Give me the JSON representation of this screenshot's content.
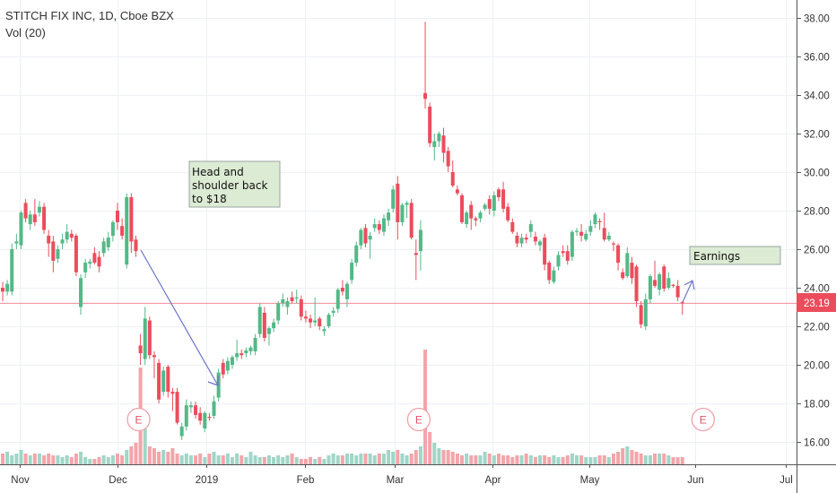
{
  "header": {
    "title": "STITCH FIX INC, 1D, Cboe BZX",
    "indicator": "Vol (20)"
  },
  "colors": {
    "up": "#53b987",
    "down": "#eb4d5c",
    "vol_up": "#9fd6c7",
    "vol_down": "#f3a5aa",
    "price_line": "#f28b98",
    "note_bg": "#dcebd3",
    "arrow": "#6b73c9"
  },
  "annotations": {
    "pattern_note": [
      "Head and",
      "shoulder back",
      "to $18"
    ],
    "earnings_note": "Earnings",
    "earnings_marker": "E"
  },
  "last_price": "23.19",
  "chart_data": {
    "type": "candlestick",
    "title": "STITCH FIX INC, 1D, Cboe BZX",
    "ylim": [
      15,
      38.9
    ],
    "y_ticks": [
      "16.00",
      "18.00",
      "20.00",
      "22.00",
      "24.00",
      "26.00",
      "28.00",
      "30.00",
      "32.00",
      "34.00",
      "36.00",
      "38.00"
    ],
    "x_ticks": [
      {
        "label": "Nov",
        "index": 3.7
      },
      {
        "label": "Dec",
        "index": 25
      },
      {
        "label": "2019",
        "index": 44.3
      },
      {
        "label": "Feb",
        "index": 65.8
      },
      {
        "label": "Mar",
        "index": 85.3
      },
      {
        "label": "Apr",
        "index": 106.6
      },
      {
        "label": "May",
        "index": 127.7
      },
      {
        "label": "Jun",
        "index": 150.8
      },
      {
        "label": "Jul",
        "index": 170.5
      }
    ],
    "earnings_index": [
      29.6,
      90.6,
      152.5
    ],
    "ohlc": [
      [
        24.0,
        24.3,
        23.3,
        23.8
      ],
      [
        23.8,
        24.4,
        23.6,
        24.2
      ],
      [
        23.8,
        26.3,
        23.6,
        26.0
      ],
      [
        26.3,
        26.8,
        26.0,
        26.4
      ],
      [
        26.2,
        28.0,
        26.0,
        27.9
      ],
      [
        28.4,
        28.6,
        27.4,
        27.6
      ],
      [
        27.3,
        28.0,
        27.0,
        27.8
      ],
      [
        27.8,
        28.6,
        27.2,
        27.4
      ],
      [
        27.9,
        28.5,
        27.7,
        28.2
      ],
      [
        28.2,
        28.4,
        26.8,
        27.0
      ],
      [
        26.7,
        27.0,
        25.6,
        26.3
      ],
      [
        26.4,
        26.7,
        24.8,
        25.4
      ],
      [
        25.5,
        26.2,
        25.3,
        26.0
      ],
      [
        26.3,
        26.8,
        26.0,
        26.5
      ],
      [
        26.5,
        27.3,
        26.3,
        26.9
      ],
      [
        26.8,
        27.0,
        26.4,
        26.6
      ],
      [
        26.7,
        26.8,
        24.6,
        24.8
      ],
      [
        23.0,
        24.7,
        22.6,
        24.5
      ],
      [
        24.8,
        25.5,
        24.5,
        25.3
      ],
      [
        25.25,
        25.5,
        25.0,
        25.35
      ],
      [
        25.8,
        26.1,
        25.2,
        25.3
      ],
      [
        25.6,
        25.9,
        24.8,
        25.1
      ],
      [
        25.8,
        26.6,
        25.6,
        26.4
      ],
      [
        26.1,
        26.9,
        25.9,
        26.6
      ],
      [
        26.7,
        27.5,
        26.4,
        27.4
      ],
      [
        28.0,
        28.4,
        27.0,
        27.4
      ],
      [
        27.2,
        27.6,
        26.5,
        26.7
      ],
      [
        25.2,
        28.9,
        25.0,
        28.7
      ],
      [
        28.7,
        28.9,
        25.8,
        26.4
      ],
      [
        26.5,
        26.7,
        25.6,
        25.9
      ],
      [
        21.0,
        21.6,
        20.0,
        20.6
      ],
      [
        20.3,
        23.0,
        20.0,
        22.4
      ],
      [
        22.3,
        22.5,
        20.3,
        20.5
      ],
      [
        20.5,
        20.7,
        19.3,
        20.4
      ],
      [
        20.1,
        20.3,
        18.0,
        18.2
      ],
      [
        18.6,
        19.9,
        18.4,
        19.7
      ],
      [
        19.9,
        20.0,
        18.3,
        18.6
      ],
      [
        18.6,
        18.8,
        17.6,
        18.5
      ],
      [
        18.6,
        18.8,
        16.9,
        17.0
      ],
      [
        16.3,
        17.0,
        16.1,
        16.8
      ],
      [
        16.8,
        18.2,
        16.6,
        17.9
      ],
      [
        17.8,
        18.1,
        17.5,
        17.9
      ],
      [
        17.9,
        18.1,
        17.2,
        17.4
      ],
      [
        17.5,
        17.8,
        16.9,
        17.1
      ],
      [
        16.7,
        17.6,
        16.5,
        17.5
      ],
      [
        17.3,
        17.5,
        17.1,
        17.25
      ],
      [
        17.35,
        18.4,
        17.2,
        18.1
      ],
      [
        18.3,
        19.8,
        18.1,
        19.6
      ],
      [
        20.1,
        20.3,
        19.3,
        19.5
      ],
      [
        19.7,
        20.4,
        19.5,
        20.2
      ],
      [
        20.0,
        20.5,
        19.8,
        20.4
      ],
      [
        20.4,
        21.3,
        20.2,
        20.6
      ],
      [
        20.6,
        20.8,
        20.3,
        20.5
      ],
      [
        20.6,
        20.9,
        20.4,
        20.75
      ],
      [
        20.7,
        21.0,
        20.5,
        20.9
      ],
      [
        20.7,
        21.6,
        20.5,
        21.4
      ],
      [
        21.6,
        23.2,
        21.4,
        23.0
      ],
      [
        22.7,
        23.0,
        21.2,
        21.4
      ],
      [
        21.6,
        22.0,
        21.0,
        21.9
      ],
      [
        21.9,
        22.4,
        21.7,
        22.2
      ],
      [
        22.3,
        23.3,
        22.1,
        23.2
      ],
      [
        23.2,
        23.7,
        23.0,
        23.4
      ],
      [
        23.0,
        23.5,
        22.6,
        23.3
      ],
      [
        23.5,
        23.8,
        23.2,
        23.3
      ],
      [
        23.5,
        23.9,
        23.2,
        23.5
      ],
      [
        23.4,
        23.6,
        22.3,
        22.5
      ],
      [
        22.5,
        22.8,
        22.2,
        22.4
      ],
      [
        22.4,
        22.6,
        21.9,
        22.2
      ],
      [
        22.2,
        23.5,
        22.0,
        22.3
      ],
      [
        22.4,
        22.5,
        21.8,
        22.0
      ],
      [
        21.75,
        22.0,
        21.5,
        21.85
      ],
      [
        22.0,
        22.7,
        21.9,
        22.6
      ],
      [
        22.7,
        23.0,
        22.5,
        22.8
      ],
      [
        22.9,
        24.0,
        22.7,
        23.9
      ],
      [
        24.0,
        24.4,
        23.6,
        23.8
      ],
      [
        23.4,
        24.3,
        23.0,
        24.2
      ],
      [
        24.4,
        25.5,
        24.2,
        25.3
      ],
      [
        25.3,
        26.4,
        25.1,
        26.2
      ],
      [
        26.2,
        27.1,
        26.0,
        27.0
      ],
      [
        27.1,
        27.3,
        26.1,
        26.3
      ],
      [
        26.5,
        26.9,
        25.5,
        26.7
      ],
      [
        27.1,
        27.6,
        26.9,
        27.3
      ],
      [
        27.3,
        27.5,
        26.8,
        27.0
      ],
      [
        26.9,
        27.8,
        26.7,
        27.6
      ],
      [
        27.5,
        28.1,
        27.2,
        27.9
      ],
      [
        28.1,
        29.3,
        27.9,
        29.1
      ],
      [
        29.4,
        29.8,
        26.5,
        27.4
      ],
      [
        27.4,
        28.4,
        27.2,
        28.3
      ],
      [
        28.3,
        28.5,
        27.6,
        28.4
      ],
      [
        28.4,
        28.6,
        26.5,
        26.6
      ],
      [
        25.8,
        26.5,
        24.4,
        25.7
      ],
      [
        25.9,
        27.5,
        24.9,
        27.0
      ],
      [
        34.1,
        37.8,
        33.3,
        33.8
      ],
      [
        33.4,
        33.6,
        31.3,
        31.5
      ],
      [
        31.3,
        32.0,
        30.6,
        31.6
      ],
      [
        31.6,
        32.1,
        31.3,
        32.0
      ],
      [
        31.9,
        32.3,
        30.5,
        31.0
      ],
      [
        31.1,
        31.3,
        30.0,
        30.3
      ],
      [
        30.0,
        30.6,
        29.2,
        29.3
      ],
      [
        29.1,
        29.3,
        28.8,
        28.9
      ],
      [
        28.8,
        28.9,
        27.3,
        27.4
      ],
      [
        27.3,
        28.0,
        27.1,
        27.9
      ],
      [
        28.3,
        28.5,
        27.0,
        27.6
      ],
      [
        27.6,
        27.7,
        27.2,
        27.5
      ],
      [
        27.6,
        28.0,
        27.4,
        27.9
      ],
      [
        28.1,
        28.4,
        28.0,
        28.3
      ],
      [
        28.6,
        28.8,
        27.8,
        28.1
      ],
      [
        28.0,
        29.0,
        27.7,
        28.8
      ],
      [
        29.1,
        29.2,
        28.5,
        28.7
      ],
      [
        29.1,
        29.5,
        27.9,
        28.1
      ],
      [
        28.2,
        28.4,
        27.4,
        27.5
      ],
      [
        27.4,
        27.6,
        26.8,
        26.9
      ],
      [
        26.7,
        26.9,
        26.1,
        26.3
      ],
      [
        26.3,
        26.8,
        26.1,
        26.6
      ],
      [
        26.6,
        26.8,
        26.3,
        26.5
      ],
      [
        26.9,
        27.5,
        26.6,
        27.3
      ],
      [
        26.65,
        26.9,
        26.2,
        26.4
      ],
      [
        26.2,
        26.5,
        25.9,
        26.4
      ],
      [
        26.6,
        26.8,
        24.9,
        25.2
      ],
      [
        25.3,
        25.4,
        24.2,
        24.4
      ],
      [
        24.3,
        25.1,
        24.2,
        24.9
      ],
      [
        25.1,
        25.9,
        24.9,
        25.7
      ],
      [
        25.9,
        26.2,
        25.6,
        25.8
      ],
      [
        25.9,
        26.2,
        25.2,
        25.4
      ],
      [
        25.6,
        27.0,
        25.4,
        26.9
      ],
      [
        26.9,
        27.1,
        26.7,
        26.95
      ],
      [
        26.9,
        27.3,
        26.4,
        26.7
      ],
      [
        26.5,
        27.0,
        26.4,
        26.8
      ],
      [
        26.9,
        27.5,
        26.7,
        27.2
      ],
      [
        27.3,
        27.9,
        27.1,
        27.8
      ],
      [
        27.45,
        27.6,
        27.0,
        27.4
      ],
      [
        27.1,
        27.9,
        26.4,
        26.5
      ],
      [
        26.5,
        26.9,
        26.4,
        26.7
      ],
      [
        26.3,
        26.4,
        25.9,
        26.25
      ],
      [
        26.2,
        26.3,
        24.9,
        25.3
      ],
      [
        24.8,
        25.0,
        24.4,
        24.5
      ],
      [
        24.6,
        26.1,
        24.5,
        25.8
      ],
      [
        25.3,
        25.6,
        24.2,
        24.5
      ],
      [
        25.1,
        25.2,
        23.0,
        23.3
      ],
      [
        23.1,
        23.3,
        21.9,
        22.1
      ],
      [
        22.0,
        23.7,
        21.8,
        23.4
      ],
      [
        23.4,
        24.7,
        23.2,
        24.6
      ],
      [
        24.4,
        25.4,
        24.0,
        24.1
      ],
      [
        23.9,
        24.8,
        23.6,
        24.7
      ],
      [
        25.1,
        25.2,
        23.8,
        23.95
      ],
      [
        24.0,
        24.8,
        23.9,
        24.5
      ],
      [
        24.15,
        24.2,
        24.0,
        24.1
      ],
      [
        24.1,
        24.4,
        23.3,
        23.5
      ],
      [
        23.25,
        23.3,
        22.6,
        23.19
      ]
    ],
    "volume_relative": [
      3,
      3.5,
      2.5,
      3,
      4,
      3,
      2.5,
      3,
      3,
      2.5,
      3,
      2.5,
      2.5,
      2,
      2.5,
      2,
      3,
      3.5,
      2,
      1.5,
      1.5,
      2,
      2.5,
      2,
      2.5,
      3,
      2.5,
      4,
      5,
      6,
      27,
      10,
      5,
      4.5,
      3.5,
      4,
      3.5,
      4.5,
      3,
      2.5,
      3,
      2.5,
      2.5,
      3,
      2,
      3,
      3.5,
      2.5,
      2.5,
      3,
      2,
      3,
      2.5,
      2,
      3.5,
      2.5,
      2,
      2,
      2.5,
      2,
      2.5,
      2,
      2.5,
      3,
      2,
      1.5,
      1.5,
      2,
      1.5,
      2,
      1.5,
      2.5,
      3,
      2.5,
      2.5,
      3,
      3,
      2.5,
      3,
      3,
      3,
      2.5,
      3,
      3,
      4,
      3.5,
      4,
      3,
      2.5,
      3,
      4,
      5,
      32,
      9,
      6,
      4.5,
      4,
      4,
      3.5,
      3,
      2.5,
      3,
      2.5,
      2.5,
      2.5,
      3.5,
      3,
      2.5,
      3,
      2.5,
      2.5,
      2,
      2.5,
      2.5,
      3,
      2.5,
      2,
      2.5,
      2.5,
      2,
      2.5,
      2,
      2,
      2.5,
      3,
      2.5,
      2.5,
      2,
      2,
      2,
      2.5,
      2.5,
      2,
      3,
      3.5,
      4.5,
      5,
      4,
      3.5,
      3,
      2.5,
      2.5,
      3,
      3,
      3,
      2.5,
      2,
      2,
      2
    ],
    "last_value": 23.19,
    "grid": true
  }
}
